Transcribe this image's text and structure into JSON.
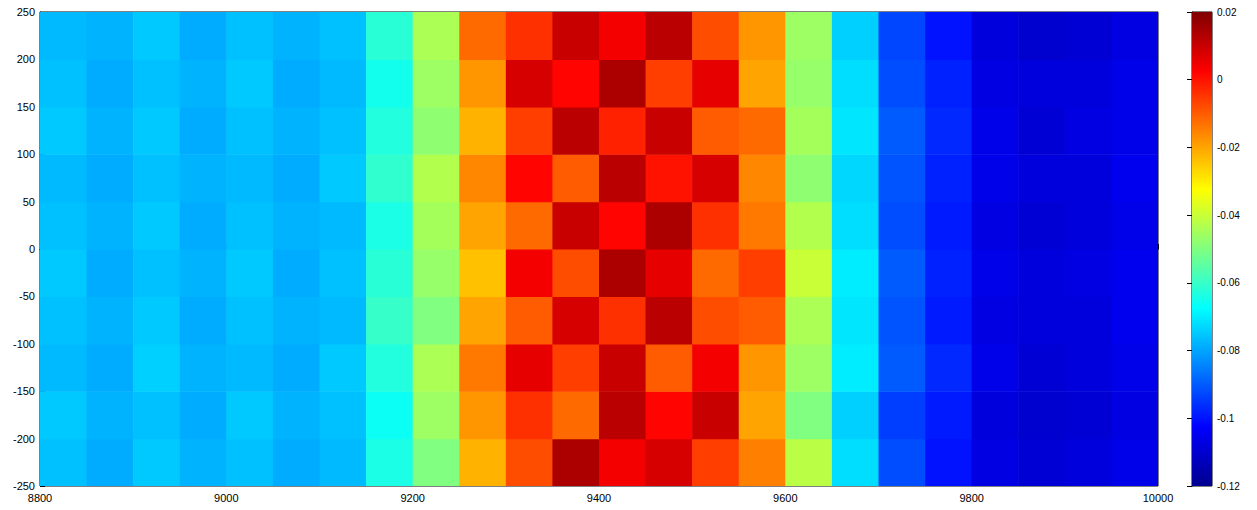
{
  "chart_data": {
    "type": "heatmap",
    "x": [
      8825,
      8875,
      8925,
      8975,
      9025,
      9075,
      9125,
      9175,
      9225,
      9275,
      9325,
      9375,
      9425,
      9475,
      9525,
      9575,
      9625,
      9675,
      9725,
      9775,
      9825,
      9875,
      9925,
      9975
    ],
    "y": [
      -225,
      -175,
      -125,
      -75,
      -25,
      25,
      75,
      125,
      175,
      225
    ],
    "values": [
      [
        -0.076,
        -0.079,
        -0.075,
        -0.078,
        -0.076,
        -0.079,
        -0.077,
        -0.064,
        -0.05,
        -0.022,
        -0.008,
        0.014,
        0.004,
        0.008,
        -0.006,
        -0.015,
        -0.042,
        -0.072,
        -0.092,
        -0.1,
        -0.107,
        -0.109,
        -0.108,
        -0.106
      ],
      [
        -0.075,
        -0.078,
        -0.076,
        -0.079,
        -0.075,
        -0.078,
        -0.076,
        -0.066,
        -0.046,
        -0.018,
        -0.004,
        -0.012,
        0.012,
        0.002,
        0.01,
        -0.02,
        -0.05,
        -0.074,
        -0.094,
        -0.099,
        -0.108,
        -0.11,
        -0.109,
        -0.107
      ],
      [
        -0.077,
        -0.079,
        -0.074,
        -0.078,
        -0.077,
        -0.079,
        -0.075,
        -0.063,
        -0.044,
        -0.014,
        0.006,
        -0.006,
        0.01,
        -0.01,
        0.004,
        -0.018,
        -0.046,
        -0.07,
        -0.09,
        -0.097,
        -0.106,
        -0.109,
        -0.108,
        -0.106
      ],
      [
        -0.076,
        -0.078,
        -0.075,
        -0.079,
        -0.076,
        -0.078,
        -0.077,
        -0.06,
        -0.05,
        -0.02,
        -0.01,
        0.008,
        -0.004,
        0.012,
        -0.008,
        -0.01,
        -0.044,
        -0.071,
        -0.091,
        -0.099,
        -0.107,
        -0.108,
        -0.108,
        -0.105
      ],
      [
        -0.075,
        -0.079,
        -0.076,
        -0.078,
        -0.075,
        -0.079,
        -0.076,
        -0.062,
        -0.047,
        -0.024,
        0.004,
        -0.008,
        0.014,
        0.006,
        -0.012,
        -0.006,
        -0.04,
        -0.07,
        -0.09,
        -0.098,
        -0.106,
        -0.108,
        -0.107,
        -0.105
      ],
      [
        -0.076,
        -0.078,
        -0.075,
        -0.079,
        -0.076,
        -0.078,
        -0.077,
        -0.064,
        -0.045,
        -0.02,
        -0.012,
        0.01,
        0.002,
        0.014,
        -0.004,
        -0.014,
        -0.043,
        -0.072,
        -0.092,
        -0.099,
        -0.107,
        -0.109,
        -0.108,
        -0.106
      ],
      [
        -0.077,
        -0.079,
        -0.076,
        -0.078,
        -0.077,
        -0.079,
        -0.075,
        -0.061,
        -0.043,
        -0.016,
        0.002,
        -0.01,
        0.012,
        0.0,
        0.008,
        -0.016,
        -0.048,
        -0.073,
        -0.091,
        -0.098,
        -0.106,
        -0.108,
        -0.108,
        -0.105
      ],
      [
        -0.075,
        -0.078,
        -0.075,
        -0.079,
        -0.076,
        -0.078,
        -0.076,
        -0.063,
        -0.048,
        -0.022,
        -0.006,
        0.012,
        -0.002,
        0.01,
        -0.01,
        -0.012,
        -0.045,
        -0.071,
        -0.09,
        -0.097,
        -0.106,
        -0.109,
        -0.107,
        -0.106
      ],
      [
        -0.076,
        -0.079,
        -0.076,
        -0.078,
        -0.075,
        -0.079,
        -0.077,
        -0.065,
        -0.046,
        -0.018,
        0.008,
        0.002,
        0.014,
        -0.006,
        0.006,
        -0.02,
        -0.047,
        -0.072,
        -0.092,
        -0.098,
        -0.107,
        -0.108,
        -0.108,
        -0.106
      ],
      [
        -0.077,
        -0.078,
        -0.075,
        -0.079,
        -0.076,
        -0.078,
        -0.076,
        -0.062,
        -0.044,
        -0.012,
        -0.004,
        0.01,
        0.004,
        0.012,
        -0.008,
        -0.018,
        -0.046,
        -0.074,
        -0.093,
        -0.1,
        -0.108,
        -0.11,
        -0.109,
        -0.107
      ]
    ],
    "xlim": [
      8800,
      10000
    ],
    "xticks": [
      8800,
      9000,
      9200,
      9400,
      9600,
      9800,
      10000
    ],
    "ylim": [
      -250,
      250
    ],
    "yticks": [
      -250,
      -200,
      -150,
      -100,
      -50,
      0,
      50,
      100,
      150,
      200,
      250
    ],
    "colorbar": {
      "range": [
        -0.12,
        0.02
      ],
      "ticks": [
        -0.12,
        -0.1,
        -0.08,
        -0.06,
        -0.04,
        -0.02,
        0,
        0.02
      ]
    }
  }
}
